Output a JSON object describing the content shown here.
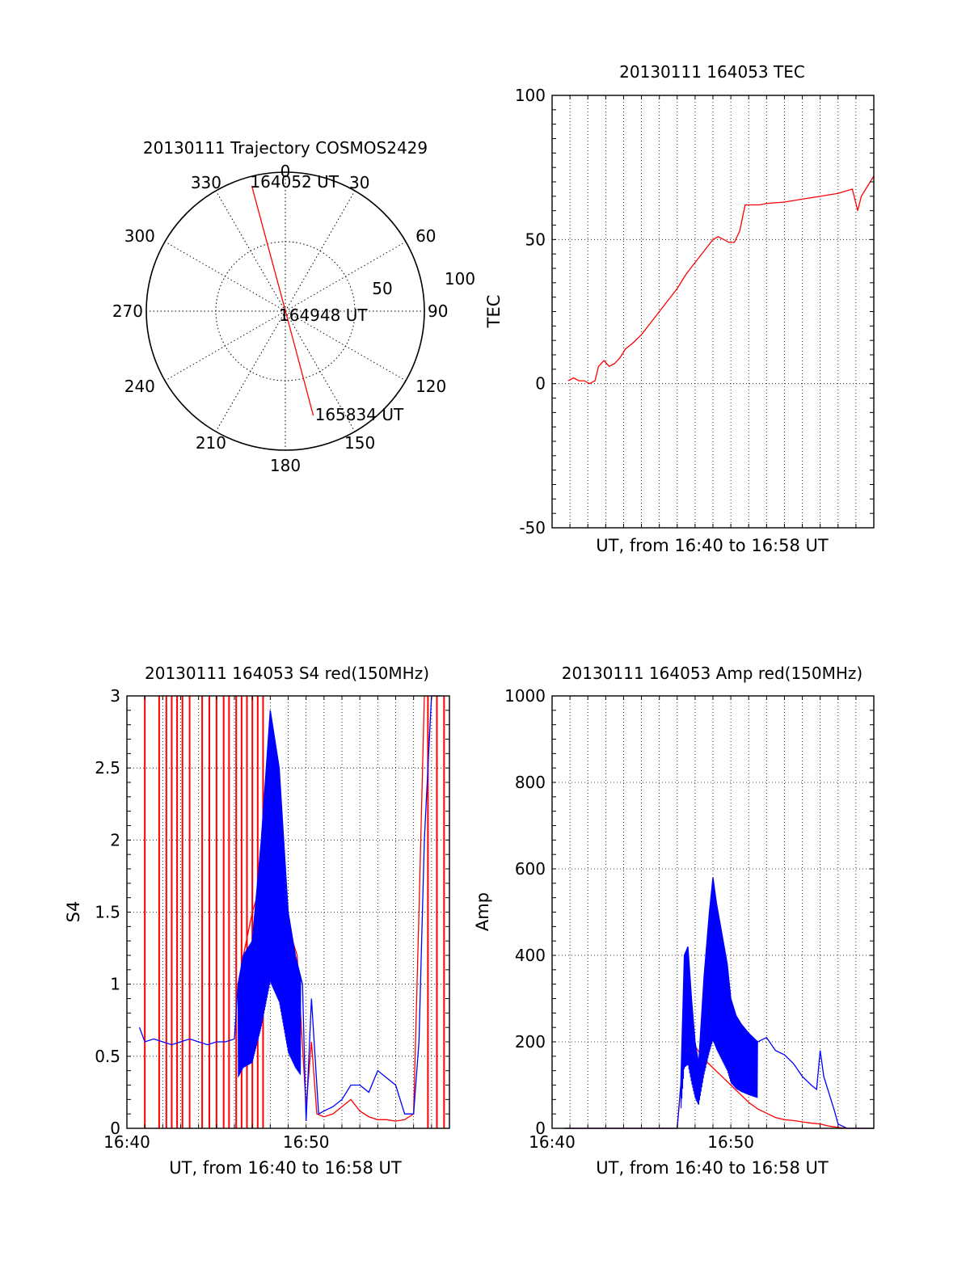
{
  "chart_data": [
    {
      "type": "polar",
      "title": "20130111 Trajectory COSMOS2429",
      "azimuth_labels": [
        "0",
        "30",
        "60",
        "90",
        "120",
        "150",
        "180",
        "210",
        "240",
        "270",
        "300",
        "330"
      ],
      "radial_labels": [
        "50",
        "100"
      ],
      "track": {
        "color": "#ff0000",
        "start": {
          "label": "164052 UT",
          "az": 345,
          "el": 6
        },
        "mid": {
          "label": "164948 UT",
          "az": 163,
          "el": 87
        },
        "end": {
          "label": "165834 UT",
          "az": 165,
          "el": 20
        }
      }
    },
    {
      "type": "line",
      "title": "20130111 164053 TEC",
      "xlabel": "UT, from 16:40 to 16:58 UT",
      "ylabel": "TEC",
      "xlim": [
        0,
        18
      ],
      "ylim": [
        -50,
        100
      ],
      "ytick_labels": [
        "-50",
        "0",
        "50",
        "100"
      ],
      "xtick_labels": [],
      "grid": true,
      "series": [
        {
          "color": "#ff0000",
          "x": [
            0.9,
            1.2,
            1.5,
            1.8,
            2.1,
            2.4,
            2.6,
            2.9,
            3.2,
            3.5,
            3.8,
            4.1,
            4.5,
            5.0,
            5.5,
            6.0,
            6.5,
            7.0,
            7.5,
            8.0,
            8.5,
            9.0,
            9.3,
            9.6,
            9.9,
            10.2,
            10.5,
            10.8,
            11.1,
            11.35,
            11.6,
            12.0,
            13.0,
            14.0,
            15.0,
            16.0,
            16.8,
            17.1,
            17.3,
            17.6,
            18.0
          ],
          "y": [
            1,
            2,
            1,
            1,
            0,
            1,
            6,
            8,
            6,
            7,
            9,
            12,
            14,
            17,
            21,
            25,
            29,
            33,
            38,
            42,
            46,
            50,
            51,
            50,
            49,
            49,
            53,
            62,
            62,
            62,
            62,
            62.5,
            63,
            64,
            65,
            66,
            67.5,
            60,
            65,
            68,
            72
          ]
        }
      ]
    },
    {
      "type": "line",
      "title": "20130111 164053 S4 red(150MHz)",
      "xlabel": "UT, from 16:40 to 16:58 UT",
      "ylabel": "S4",
      "xlim": [
        0,
        18
      ],
      "ylim": [
        0,
        3
      ],
      "ytick_labels": [
        "0",
        "0.5",
        "1",
        "1.5",
        "2",
        "2.5",
        "3"
      ],
      "xtick_labels": [
        {
          "x": 0,
          "label": "16:40"
        },
        {
          "x": 10,
          "label": "16:50"
        }
      ],
      "grid": true,
      "series": [
        {
          "color": "#ff0000",
          "x": [
            6.2,
            6.5,
            7.0,
            7.5,
            8.0,
            8.5,
            9.0,
            9.5,
            10.0,
            10.3,
            10.6,
            11.0,
            11.5,
            12.0,
            12.5,
            13.0,
            13.5,
            14.0,
            14.5,
            15.0,
            15.5,
            16.0,
            16.3,
            16.6
          ],
          "y": [
            0.9,
            1.2,
            1.5,
            1.7,
            2.0,
            2.0,
            1.4,
            1.2,
            0.15,
            0.6,
            0.1,
            0.08,
            0.1,
            0.15,
            0.2,
            0.12,
            0.08,
            0.06,
            0.06,
            0.05,
            0.06,
            0.1,
            1.5,
            3.0
          ],
          "spikes_x": [
            1.0,
            1.8,
            2.2,
            2.5,
            2.8,
            3.1,
            3.5,
            4.2,
            4.6,
            5.0,
            5.4,
            5.7,
            6.1,
            6.4,
            6.7,
            7.0,
            7.3,
            7.6,
            16.8,
            17.3,
            17.7
          ]
        },
        {
          "color": "#0000ff",
          "x": [
            0.7,
            1.0,
            1.5,
            2.0,
            2.5,
            3.0,
            3.5,
            4.0,
            4.5,
            5.0,
            5.5,
            6.0,
            6.2,
            6.5,
            7.0,
            7.5,
            8.0,
            8.5,
            9.0,
            9.4,
            9.8,
            10.0,
            10.3,
            10.7,
            11.0,
            11.5,
            12.0,
            12.5,
            13.0,
            13.5,
            14.0,
            14.5,
            15.0,
            15.5,
            16.0,
            16.3,
            16.6,
            17.0,
            17.5
          ],
          "y": [
            0.7,
            0.6,
            0.62,
            0.6,
            0.58,
            0.6,
            0.62,
            0.6,
            0.58,
            0.6,
            0.6,
            0.62,
            1.0,
            1.2,
            1.3,
            2.0,
            2.9,
            2.5,
            1.5,
            1.2,
            1.0,
            0.05,
            0.9,
            0.1,
            0.12,
            0.15,
            0.2,
            0.3,
            0.3,
            0.25,
            0.4,
            0.35,
            0.3,
            0.1,
            0.1,
            0.6,
            2.0,
            3.0,
            3.0
          ],
          "band_x": [
            6.2,
            9.7
          ]
        }
      ]
    },
    {
      "type": "line",
      "title": "20130111 164053 Amp red(150MHz)",
      "xlabel": "UT, from 16:40 to 16:58 UT",
      "ylabel": "Amp",
      "xlim": [
        0,
        18
      ],
      "ylim": [
        0,
        1000
      ],
      "ytick_labels": [
        "0",
        "200",
        "400",
        "600",
        "800",
        "1000"
      ],
      "xtick_labels": [
        {
          "x": 0,
          "label": "16:40"
        },
        {
          "x": 10,
          "label": "16:50"
        }
      ],
      "grid": true,
      "series": [
        {
          "color": "#ff0000",
          "x": [
            0.7,
            5.0,
            6.5,
            7.0,
            7.2,
            7.5,
            7.8,
            8.0,
            8.5,
            9.0,
            9.5,
            10.0,
            10.5,
            11.0,
            11.5,
            12.0,
            12.5,
            13.0,
            13.5,
            14.0,
            14.5,
            15.0,
            15.5,
            16.0,
            16.5,
            17.0,
            18.0
          ],
          "y": [
            0,
            0,
            0,
            0,
            100,
            180,
            200,
            190,
            160,
            140,
            120,
            100,
            80,
            60,
            45,
            35,
            25,
            20,
            18,
            15,
            12,
            10,
            5,
            2,
            0,
            0,
            0
          ]
        },
        {
          "color": "#0000ff",
          "x": [
            0.7,
            5.0,
            6.5,
            7.0,
            7.2,
            7.4,
            7.6,
            7.8,
            8.0,
            8.2,
            8.5,
            8.8,
            9.0,
            9.2,
            9.5,
            9.8,
            10.0,
            10.3,
            10.6,
            11.0,
            11.5,
            12.0,
            12.5,
            13.0,
            13.5,
            14.0,
            14.5,
            14.8,
            15.0,
            15.2,
            15.5,
            15.8,
            16.0,
            16.5,
            17.0,
            18.0
          ],
          "y": [
            0,
            0,
            0,
            0,
            100,
            400,
            420,
            300,
            200,
            150,
            350,
            500,
            580,
            520,
            450,
            380,
            300,
            260,
            240,
            220,
            200,
            210,
            180,
            170,
            150,
            120,
            100,
            90,
            180,
            120,
            80,
            40,
            10,
            0,
            0,
            0
          ],
          "band_x": [
            7.2,
            11.5
          ]
        }
      ]
    }
  ]
}
